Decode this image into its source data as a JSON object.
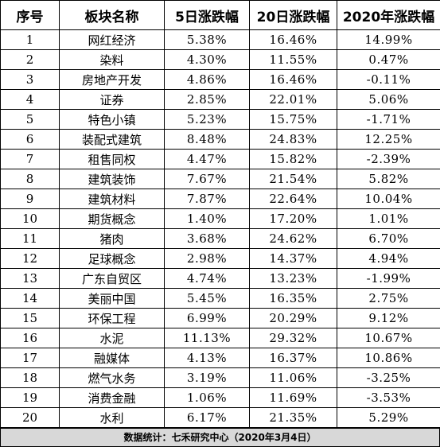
{
  "table": {
    "headers": [
      "序号",
      "板块名称",
      "5日涨跌幅",
      "20日涨跌幅",
      "2020年涨跌幅"
    ],
    "rows": [
      [
        "1",
        "网红经济",
        "5.38%",
        "16.46%",
        "14.99%"
      ],
      [
        "2",
        "染料",
        "4.30%",
        "11.55%",
        "0.47%"
      ],
      [
        "3",
        "房地产开发",
        "4.86%",
        "16.46%",
        "-0.11%"
      ],
      [
        "4",
        "证券",
        "2.85%",
        "22.01%",
        "5.06%"
      ],
      [
        "5",
        "特色小镇",
        "5.23%",
        "15.75%",
        "-1.71%"
      ],
      [
        "6",
        "装配式建筑",
        "8.48%",
        "24.83%",
        "12.25%"
      ],
      [
        "7",
        "租售同权",
        "4.47%",
        "15.82%",
        "-2.39%"
      ],
      [
        "8",
        "建筑装饰",
        "7.67%",
        "21.54%",
        "5.82%"
      ],
      [
        "9",
        "建筑材料",
        "7.87%",
        "22.64%",
        "10.04%"
      ],
      [
        "10",
        "期货概念",
        "1.40%",
        "17.20%",
        "1.01%"
      ],
      [
        "11",
        "猪肉",
        "3.68%",
        "24.62%",
        "6.70%"
      ],
      [
        "12",
        "足球概念",
        "2.98%",
        "14.37%",
        "4.94%"
      ],
      [
        "13",
        "广东自贸区",
        "4.74%",
        "13.23%",
        "-1.99%"
      ],
      [
        "14",
        "美丽中国",
        "5.45%",
        "16.35%",
        "2.75%"
      ],
      [
        "15",
        "环保工程",
        "6.99%",
        "20.29%",
        "9.12%"
      ],
      [
        "16",
        "水泥",
        "11.13%",
        "29.32%",
        "10.67%"
      ],
      [
        "17",
        "融媒体",
        "4.13%",
        "16.37%",
        "10.86%"
      ],
      [
        "18",
        "燃气水务",
        "3.19%",
        "11.06%",
        "-3.25%"
      ],
      [
        "19",
        "消费金融",
        "1.06%",
        "11.69%",
        "-3.53%"
      ],
      [
        "20",
        "水利",
        "6.17%",
        "21.35%",
        "5.29%"
      ]
    ]
  },
  "footer": {
    "text": "数据统计：七禾研究中心（2020年3月4日）"
  },
  "colors": {
    "footer_bg": "#d8d8d8",
    "border": "#000000"
  }
}
